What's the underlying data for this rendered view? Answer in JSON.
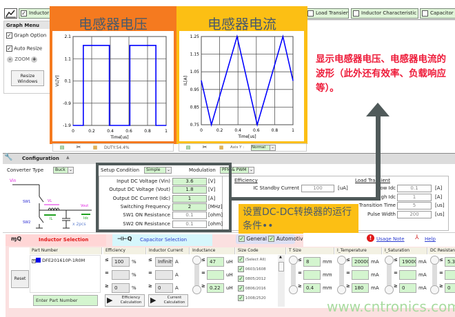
{
  "toolbar": {
    "tabs": [
      {
        "label": "Inductor",
        "checked": true
      },
      {
        "label": "Load Transient",
        "checked": false
      },
      {
        "label": "Inductor Characteristic",
        "checked": false
      },
      {
        "label": "Capacitor",
        "checked": false
      }
    ]
  },
  "graph_menu": {
    "title": "Graph Menu",
    "graph_option": "Graph Option",
    "auto_resize": "Auto Resize",
    "zoom_label": "ZOOM",
    "zoom_minus": "-",
    "zoom_plus": "+",
    "resize_button": "Resize Windows"
  },
  "voltage_panel": {
    "title": "电感器电压",
    "color": "#f57a1f"
  },
  "current_panel": {
    "title": "电感器电流",
    "color": "#fcbf14"
  },
  "chart_data": [
    {
      "type": "line",
      "xlabel": "Time[us]",
      "ylabel": "VL[V]",
      "xlim": [
        0,
        1
      ],
      "ylim": [
        -1.9,
        2.1
      ],
      "xticks": [
        "0",
        "0.2",
        "0.4",
        "0.6",
        "0.8",
        "1"
      ],
      "yticks": [
        "2.1",
        "1.1",
        "0.1",
        "-0.9",
        "-1.9"
      ],
      "grid": true,
      "color": "#0000ff",
      "x": [
        0,
        0.11,
        0.11,
        0.39,
        0.39,
        0.61,
        0.61,
        0.89,
        0.89,
        1
      ],
      "y": [
        -1.9,
        -1.9,
        1.7,
        1.7,
        -1.9,
        -1.9,
        1.7,
        1.7,
        -1.9,
        -1.9
      ]
    },
    {
      "type": "line",
      "xlabel": "Time[us]",
      "ylabel": "IL[A]",
      "xlim": [
        0,
        1
      ],
      "ylim": [
        0.75,
        1.25
      ],
      "xticks": [
        "0",
        "0.2",
        "0.4",
        "0.6",
        "0.8",
        "1"
      ],
      "yticks": [
        "1.25",
        "1.15",
        "1.05",
        "0.95",
        "0.85",
        "0.75"
      ],
      "grid": true,
      "color": "#0000ff",
      "x": [
        0,
        0.11,
        0.39,
        0.61,
        0.89,
        1
      ],
      "y": [
        1.0,
        0.75,
        1.25,
        0.75,
        1.25,
        1.0
      ]
    }
  ],
  "graph_footer": {
    "duty": "DUTY:54.4%",
    "axis_y_label": "Axis Y :",
    "axis_y_value": "Normal"
  },
  "annotation_waveform": "显示电感器电压、电感器电流的波形（此外还有效率、负载响应等）。",
  "annotation_setup": "设置DC-DC转换器的运行条件••",
  "configuration": {
    "title": "Configuration",
    "converter_type_label": "Converter Type",
    "converter_type_value": "Buck",
    "schematic": {
      "vin": "Vin",
      "sw1": "SW1",
      "sw2": "SW2",
      "vl": "VL",
      "il": "IL",
      "vout": "Vout",
      "idc": "Idc",
      "cap": "x 2pcs"
    },
    "setup_condition_label": "Setup Condition",
    "setup_condition_value": "Simple",
    "modulation_label": "Modulation",
    "modulation_value": "PFM & PWM",
    "params": [
      {
        "label": "Input DC Voltage (Vin)",
        "value": "3.6",
        "unit": "[V]",
        "editable": true
      },
      {
        "label": "Output DC Voltage (Vout)",
        "value": "1.8",
        "unit": "[V]",
        "editable": true
      },
      {
        "label": "Output DC Current (Idc)",
        "value": "1",
        "unit": "[A]",
        "editable": true
      },
      {
        "label": "Switching Frequency",
        "value": "2",
        "unit": "[MHz]",
        "editable": true
      },
      {
        "label": "SW1 ON Resistance",
        "value": "0.1",
        "unit": "[ohm]",
        "editable": false
      },
      {
        "label": "SW2 ON Resistance",
        "value": "0.1",
        "unit": "[ohm]",
        "editable": false
      }
    ],
    "efficiency_title": "Efficiency",
    "efficiency": [
      {
        "label": "IC Standby Current",
        "value": "100",
        "unit": "[uA]"
      }
    ],
    "load_transient_title": "Load Transient",
    "load_transient": [
      {
        "label": "Low Idc",
        "value": "0.1",
        "unit": "[A]"
      },
      {
        "label": "High Idc",
        "value": "1",
        "unit": "[A]"
      },
      {
        "label": "Transition Time",
        "value": "5",
        "unit": "[us]"
      },
      {
        "label": "Pulse Width",
        "value": "200",
        "unit": "[us]"
      }
    ]
  },
  "selection": {
    "inductor_tab": "Inductor Selection",
    "capacitor_tab": "Capacitor Selection",
    "general": "General",
    "automotive": "Automotive",
    "usage_note": "Usage Note",
    "help": "Help",
    "reset": "Reset",
    "part_number_header": "Part Number",
    "part_number_item": "DFE201610P-1R0M",
    "part_number_placeholder": "Enter Part Number",
    "efficiency_header": "Efficiency",
    "efficiency_values": [
      "100",
      "",
      "0"
    ],
    "efficiency_unit": "%",
    "efficiency_button": "Efficiency Calculation",
    "current_header": "Inductor Current",
    "current_values": [
      "Infinity",
      "",
      "0"
    ],
    "current_unit": "A",
    "current_button": "Current Calculation",
    "inductance_header": "Inductance",
    "inductance_values": [
      "47",
      "",
      "0.22"
    ],
    "inductance_unit": "uH",
    "size_header": "Size Code",
    "size_codes": [
      "(Select All)",
      "0603/1608",
      "0805/2012",
      "0806/2016",
      "1008/2520"
    ],
    "tsize_header": "T Size",
    "tsize_values": [
      "8",
      "",
      "0.4"
    ],
    "tsize_unit": "mm",
    "itemp_header": "I_Temperature",
    "itemp_values": [
      "20000",
      "",
      "180"
    ],
    "isat_header": "I_Saturation",
    "isat_values": [
      "19000",
      "",
      "0"
    ],
    "ma_unit": "mA",
    "dcr_header": "DC Resistance",
    "dcr_values": [
      "5.3",
      "",
      "0"
    ],
    "ops": [
      "≤",
      "=",
      "≥"
    ]
  },
  "watermark": "www.cntronics.com"
}
